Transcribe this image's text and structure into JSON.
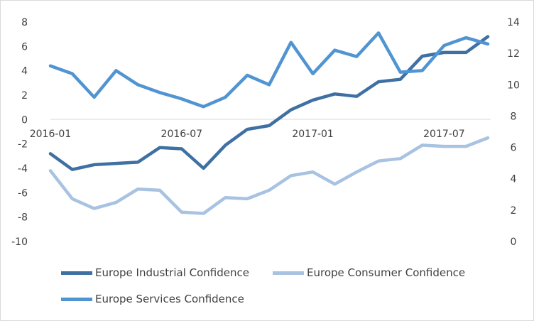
{
  "chart_data": {
    "type": "line",
    "title": "",
    "x": [
      "2016-01",
      "2016-02",
      "2016-03",
      "2016-04",
      "2016-05",
      "2016-06",
      "2016-07",
      "2016-08",
      "2016-09",
      "2016-10",
      "2016-11",
      "2016-12",
      "2017-01",
      "2017-02",
      "2017-03",
      "2017-04",
      "2017-05",
      "2017-06",
      "2017-07",
      "2017-08",
      "2017-09"
    ],
    "x_tick_labels": [
      "2016-01",
      "2016-07",
      "2017-01",
      "2017-07"
    ],
    "y_left": {
      "range": [
        -10,
        8
      ],
      "ticks": [
        "-10",
        "-8",
        "-6",
        "-4",
        "-2",
        "0",
        "2",
        "4",
        "6",
        "8"
      ]
    },
    "y_right": {
      "range": [
        0,
        14
      ],
      "ticks": [
        "0",
        "2",
        "4",
        "6",
        "8",
        "10",
        "12",
        "14"
      ]
    },
    "grid": false,
    "legend_position": "bottom",
    "series": [
      {
        "name": "Europe Industrial Confidence",
        "axis": "left",
        "color": "#3e70a3",
        "values": [
          -2.8,
          -4.1,
          -3.7,
          -3.6,
          -3.5,
          -2.3,
          -2.4,
          -4.0,
          -2.1,
          -0.8,
          -0.5,
          0.8,
          1.6,
          2.1,
          1.9,
          3.1,
          3.3,
          5.2,
          5.5,
          5.5,
          6.8
        ]
      },
      {
        "name": "Europe Consumer Confidence",
        "axis": "left",
        "color": "#a8c2e1",
        "values": [
          -4.2,
          -6.5,
          -7.3,
          -6.8,
          -5.7,
          -5.8,
          -7.6,
          -7.7,
          -6.4,
          -6.5,
          -5.8,
          -4.6,
          -4.3,
          -5.3,
          -4.3,
          -3.4,
          -3.2,
          -2.1,
          -2.2,
          -2.2,
          -1.5
        ]
      },
      {
        "name": "Europe Services Confidence",
        "axis": "right",
        "color": "#5094d2",
        "values": [
          11.2,
          10.7,
          9.2,
          10.9,
          10.0,
          9.5,
          9.1,
          8.6,
          9.2,
          10.6,
          10.0,
          12.7,
          10.7,
          12.2,
          11.8,
          13.3,
          10.8,
          10.9,
          12.5,
          13.0,
          12.6
        ]
      }
    ]
  }
}
